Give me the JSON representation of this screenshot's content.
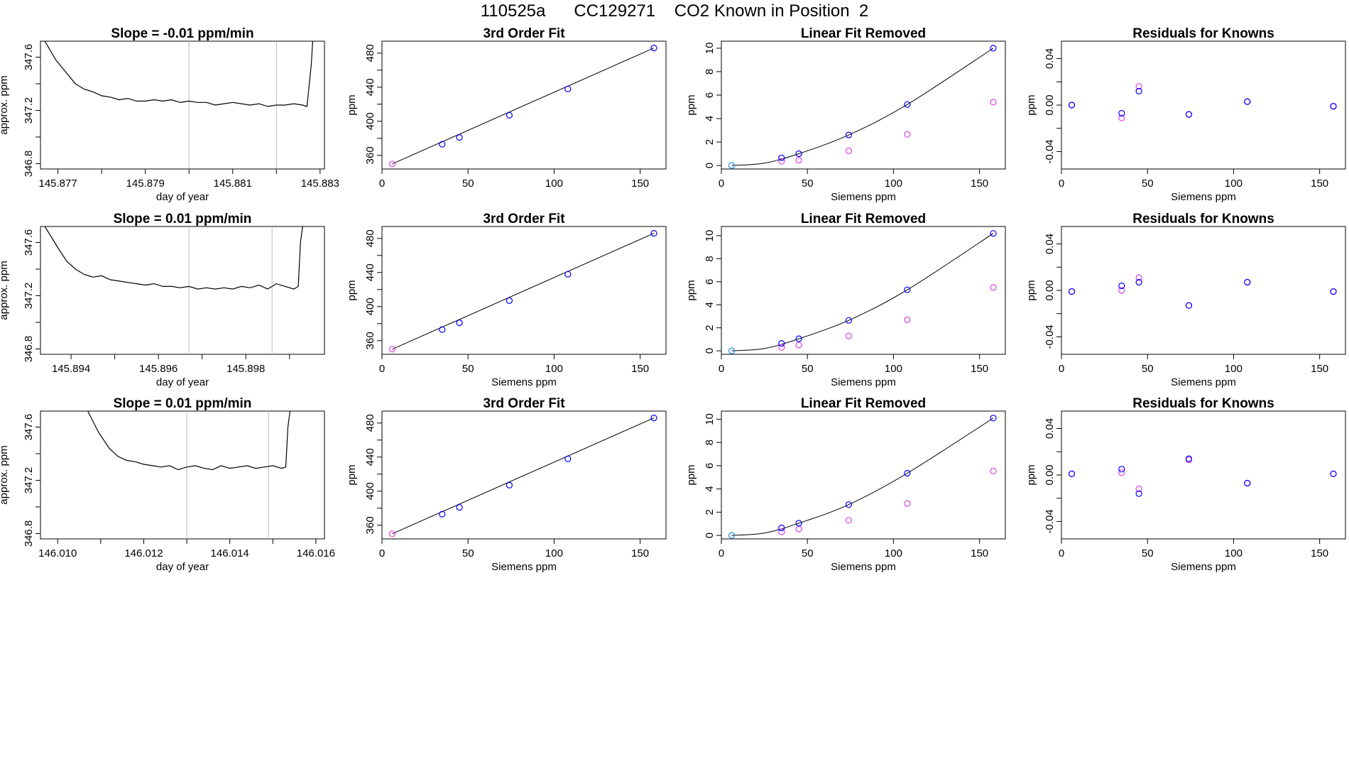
{
  "figure": {
    "title": "110525a      CC129271    CO2 Known in Position  2"
  },
  "colors": {
    "axis": "#000000",
    "curve": "#000000",
    "blue": "#0000ff",
    "magenta": "#e040e0",
    "cyan": "#2090e0",
    "vline": "#bbbbbb",
    "residual_dark": "#7a1fb0"
  },
  "chart_data": [
    {
      "type": "line",
      "row": 0,
      "kind": "timeseries",
      "title": "Slope =  -0.01  ppm/min",
      "xlabel": "day of year",
      "ylabel": "approx. ppm",
      "xlim": [
        145.8766,
        145.8831
      ],
      "ylim": [
        346.76,
        347.72
      ],
      "xticks": [
        "145.877",
        "145.879",
        "145.881",
        "145.883"
      ],
      "xtick_values": [
        145.877,
        145.879,
        145.881,
        145.883
      ],
      "xminor": [
        145.878,
        145.88,
        145.882
      ],
      "yticks": [
        "346.8",
        "347.2",
        "347.6"
      ],
      "ytick_values": [
        346.8,
        347.2,
        347.6
      ],
      "yminor": [
        347.0,
        347.4
      ],
      "vlines": [
        145.88,
        145.882
      ],
      "curve": {
        "x": [
          145.8767,
          145.87695,
          145.8772,
          145.8774,
          145.8776,
          145.8778,
          145.878,
          145.8782,
          145.8784,
          145.8786,
          145.8788,
          145.879,
          145.8792,
          145.8794,
          145.8796,
          145.8798,
          145.88,
          145.8802,
          145.8804,
          145.8806,
          145.8808,
          145.881,
          145.8812,
          145.8814,
          145.8816,
          145.8818,
          145.882,
          145.8822,
          145.8824,
          145.8826,
          145.8827,
          145.8828,
          145.88283
        ],
        "y": [
          347.72,
          347.58,
          347.48,
          347.4,
          347.36,
          347.34,
          347.31,
          347.3,
          347.28,
          347.29,
          347.27,
          347.27,
          347.28,
          347.27,
          347.28,
          347.26,
          347.27,
          347.26,
          347.26,
          347.24,
          347.25,
          347.26,
          347.25,
          347.24,
          347.25,
          347.23,
          347.24,
          347.24,
          347.25,
          347.24,
          347.23,
          347.55,
          347.72
        ]
      }
    },
    {
      "type": "scatter",
      "row": 0,
      "kind": "fit",
      "title": "3rd Order Fit",
      "xlabel": "",
      "ylabel": "ppm",
      "xlim": [
        0,
        165
      ],
      "ylim": [
        344,
        494
      ],
      "xticks": [
        "0",
        "50",
        "100",
        "150"
      ],
      "xtick_values": [
        0,
        50,
        100,
        150
      ],
      "yticks": [
        "360",
        "400",
        "440",
        "480"
      ],
      "ytick_values": [
        360,
        400,
        440,
        480
      ],
      "yminor": [
        380,
        420,
        460
      ],
      "fit_line": {
        "x": [
          6,
          158
        ],
        "y": [
          350,
          486
        ]
      },
      "series": [
        {
          "color": "magenta",
          "x": [
            6
          ],
          "y": [
            350
          ]
        },
        {
          "color": "blue",
          "x": [
            35,
            45,
            74,
            108,
            158
          ],
          "y": [
            373,
            381,
            407,
            438,
            486
          ]
        }
      ]
    },
    {
      "type": "scatter",
      "row": 0,
      "kind": "linfit",
      "title": "Linear Fit Removed",
      "xlabel": "Siemens ppm",
      "ylabel": "ppm",
      "xlim": [
        0,
        165
      ],
      "ylim": [
        -0.3,
        10.6
      ],
      "xticks": [
        "0",
        "50",
        "100",
        "150"
      ],
      "xtick_values": [
        0,
        50,
        100,
        150
      ],
      "yticks": [
        "0",
        "2",
        "4",
        "6",
        "8",
        "10"
      ],
      "ytick_values": [
        0,
        2,
        4,
        6,
        8,
        10
      ],
      "fit_curve": {
        "x": [
          6,
          25,
          45,
          74,
          108,
          158
        ],
        "y": [
          0,
          0.2,
          1.0,
          2.6,
          5.2,
          10.0
        ]
      },
      "series": [
        {
          "color": "cyan",
          "x": [
            6
          ],
          "y": [
            0
          ]
        },
        {
          "color": "magenta",
          "x": [
            35,
            45,
            74,
            108,
            158
          ],
          "y": [
            0.35,
            0.45,
            1.25,
            2.65,
            5.4
          ]
        },
        {
          "color": "blue",
          "x": [
            35,
            45,
            74,
            108,
            158
          ],
          "y": [
            0.65,
            1.0,
            2.6,
            5.2,
            10.0
          ]
        }
      ]
    },
    {
      "type": "scatter",
      "row": 0,
      "kind": "residuals",
      "title": "Residuals for Knowns",
      "xlabel": "Siemens ppm",
      "ylabel": "ppm",
      "xlim": [
        0,
        165
      ],
      "ylim": [
        -0.055,
        0.055
      ],
      "xticks": [
        "0",
        "50",
        "100",
        "150"
      ],
      "xtick_values": [
        0,
        50,
        100,
        150
      ],
      "yticks": [
        "-0.04",
        "0.00",
        "0.04"
      ],
      "ytick_values": [
        -0.04,
        0.0,
        0.04
      ],
      "yminor": [
        -0.02,
        0.02
      ],
      "series": [
        {
          "color": "magenta",
          "x": [
            6,
            35,
            45,
            74,
            108,
            158
          ],
          "y": [
            0.0,
            -0.011,
            0.016,
            -0.008,
            0.003,
            -0.001
          ]
        },
        {
          "color": "blue",
          "x": [
            6,
            35,
            45,
            74,
            108,
            158
          ],
          "y": [
            0.0,
            -0.007,
            0.012,
            -0.008,
            0.003,
            -0.001
          ]
        }
      ]
    },
    {
      "type": "line",
      "row": 1,
      "kind": "timeseries",
      "title": "Slope =  0.01  ppm/min",
      "xlabel": "day of year",
      "ylabel": "approx. ppm",
      "xlim": [
        145.8933,
        145.8998
      ],
      "ylim": [
        346.76,
        347.72
      ],
      "xticks": [
        "145.894",
        "145.896",
        "145.898"
      ],
      "xtick_values": [
        145.894,
        145.896,
        145.898
      ],
      "xminor": [
        145.895,
        145.897,
        145.899
      ],
      "yticks": [
        "346.8",
        "347.2",
        "347.6"
      ],
      "ytick_values": [
        346.8,
        347.2,
        347.6
      ],
      "yminor": [
        347.0,
        347.4
      ],
      "vlines": [
        145.8967,
        145.8986
      ],
      "curve": {
        "x": [
          145.8934,
          145.8937,
          145.8939,
          145.8941,
          145.8943,
          145.8945,
          145.8947,
          145.8949,
          145.8951,
          145.8953,
          145.8955,
          145.8957,
          145.8959,
          145.8961,
          145.8963,
          145.8965,
          145.8967,
          145.8969,
          145.8971,
          145.8973,
          145.8975,
          145.8977,
          145.8979,
          145.8981,
          145.8983,
          145.8985,
          145.8987,
          145.8989,
          145.8991,
          145.8992,
          145.89925,
          145.8993
        ],
        "y": [
          347.72,
          347.56,
          347.46,
          347.4,
          347.36,
          347.34,
          347.35,
          347.32,
          347.31,
          347.3,
          347.29,
          347.28,
          347.29,
          347.27,
          347.27,
          347.26,
          347.27,
          347.25,
          347.26,
          347.25,
          347.26,
          347.25,
          347.27,
          347.26,
          347.28,
          347.25,
          347.29,
          347.27,
          347.25,
          347.27,
          347.6,
          347.72
        ]
      }
    },
    {
      "type": "scatter",
      "row": 1,
      "kind": "fit",
      "title": "3rd Order Fit",
      "xlabel": "Siemens ppm",
      "ylabel": "ppm",
      "xlim": [
        0,
        165
      ],
      "ylim": [
        344,
        494
      ],
      "xticks": [
        "0",
        "50",
        "100",
        "150"
      ],
      "xtick_values": [
        0,
        50,
        100,
        150
      ],
      "yticks": [
        "360",
        "400",
        "440",
        "480"
      ],
      "ytick_values": [
        360,
        400,
        440,
        480
      ],
      "yminor": [
        380,
        420,
        460
      ],
      "fit_line": {
        "x": [
          6,
          158
        ],
        "y": [
          350,
          486
        ]
      },
      "series": [
        {
          "color": "magenta",
          "x": [
            6
          ],
          "y": [
            350
          ]
        },
        {
          "color": "blue",
          "x": [
            35,
            45,
            74,
            108,
            158
          ],
          "y": [
            373,
            381,
            407,
            438,
            486
          ]
        }
      ]
    },
    {
      "type": "scatter",
      "row": 1,
      "kind": "linfit",
      "title": "Linear Fit Removed",
      "xlabel": "Siemens ppm",
      "ylabel": "ppm",
      "xlim": [
        0,
        165
      ],
      "ylim": [
        -0.3,
        10.8
      ],
      "xticks": [
        "0",
        "50",
        "100",
        "150"
      ],
      "xtick_values": [
        0,
        50,
        100,
        150
      ],
      "yticks": [
        "0",
        "2",
        "4",
        "6",
        "8",
        "10"
      ],
      "ytick_values": [
        0,
        2,
        4,
        6,
        8,
        10
      ],
      "fit_curve": {
        "x": [
          6,
          25,
          45,
          74,
          108,
          158
        ],
        "y": [
          0,
          0.2,
          1.05,
          2.65,
          5.3,
          10.2
        ]
      },
      "series": [
        {
          "color": "cyan",
          "x": [
            6
          ],
          "y": [
            0
          ]
        },
        {
          "color": "magenta",
          "x": [
            35,
            45,
            74,
            108,
            158
          ],
          "y": [
            0.3,
            0.5,
            1.3,
            2.7,
            5.5
          ]
        },
        {
          "color": "blue",
          "x": [
            35,
            45,
            74,
            108,
            158
          ],
          "y": [
            0.65,
            1.05,
            2.65,
            5.3,
            10.2
          ]
        }
      ]
    },
    {
      "type": "scatter",
      "row": 1,
      "kind": "residuals",
      "title": "Residuals for Knowns",
      "xlabel": "Siemens ppm",
      "ylabel": "ppm",
      "xlim": [
        0,
        165
      ],
      "ylim": [
        -0.055,
        0.055
      ],
      "xticks": [
        "0",
        "50",
        "100",
        "150"
      ],
      "xtick_values": [
        0,
        50,
        100,
        150
      ],
      "yticks": [
        "-0.04",
        "0.00",
        "0.04"
      ],
      "ytick_values": [
        -0.04,
        0.0,
        0.04
      ],
      "yminor": [
        -0.02,
        0.02
      ],
      "series": [
        {
          "color": "magenta",
          "x": [
            6,
            35,
            45,
            74,
            108,
            158
          ],
          "y": [
            -0.001,
            0.0,
            0.011,
            -0.013,
            0.007,
            -0.001
          ]
        },
        {
          "color": "blue",
          "x": [
            6,
            35,
            45,
            74,
            108,
            158
          ],
          "y": [
            -0.001,
            0.004,
            0.007,
            -0.013,
            0.007,
            -0.001
          ]
        }
      ]
    },
    {
      "type": "line",
      "row": 2,
      "kind": "timeseries",
      "title": "Slope =  0.01  ppm/min",
      "xlabel": "day of year",
      "ylabel": "approx. ppm",
      "xlim": [
        146.0096,
        146.0162
      ],
      "ylim": [
        346.76,
        347.72
      ],
      "xticks": [
        "146.010",
        "146.012",
        "146.014",
        "146.016"
      ],
      "xtick_values": [
        146.01,
        146.012,
        146.014,
        146.016
      ],
      "xminor": [
        146.011,
        146.013,
        146.015
      ],
      "yticks": [
        "346.8",
        "347.2",
        "347.6"
      ],
      "ytick_values": [
        346.8,
        347.2,
        347.6
      ],
      "yminor": [
        347.0,
        347.4
      ],
      "vlines": [
        146.013,
        146.0149
      ],
      "curve": {
        "x": [
          146.0107,
          146.01095,
          146.0112,
          146.0114,
          146.0116,
          146.0118,
          146.012,
          146.0122,
          146.0124,
          146.0126,
          146.0128,
          146.013,
          146.0132,
          146.0134,
          146.0136,
          146.0138,
          146.014,
          146.0142,
          146.0144,
          146.0146,
          146.0148,
          146.015,
          146.0152,
          146.0153,
          146.01535,
          146.0154
        ],
        "y": [
          347.72,
          347.56,
          347.44,
          347.38,
          347.35,
          347.34,
          347.32,
          347.31,
          347.3,
          347.31,
          347.28,
          347.3,
          347.31,
          347.29,
          347.28,
          347.31,
          347.29,
          347.3,
          347.31,
          347.29,
          347.3,
          347.31,
          347.29,
          347.3,
          347.6,
          347.72
        ]
      }
    },
    {
      "type": "scatter",
      "row": 2,
      "kind": "fit",
      "title": "3rd Order Fit",
      "xlabel": "Siemens ppm",
      "ylabel": "ppm",
      "xlim": [
        0,
        165
      ],
      "ylim": [
        344,
        494
      ],
      "xticks": [
        "0",
        "50",
        "100",
        "150"
      ],
      "xtick_values": [
        0,
        50,
        100,
        150
      ],
      "yticks": [
        "360",
        "400",
        "440",
        "480"
      ],
      "ytick_values": [
        360,
        400,
        440,
        480
      ],
      "yminor": [
        380,
        420,
        460
      ],
      "fit_line": {
        "x": [
          6,
          158
        ],
        "y": [
          350,
          486
        ]
      },
      "series": [
        {
          "color": "magenta",
          "x": [
            6
          ],
          "y": [
            350
          ]
        },
        {
          "color": "blue",
          "x": [
            35,
            45,
            74,
            108,
            158
          ],
          "y": [
            373,
            381,
            407,
            438,
            486
          ]
        }
      ]
    },
    {
      "type": "scatter",
      "row": 2,
      "kind": "linfit",
      "title": "Linear Fit Removed",
      "xlabel": "Siemens ppm",
      "ylabel": "ppm",
      "xlim": [
        0,
        165
      ],
      "ylim": [
        -0.3,
        10.7
      ],
      "xticks": [
        "0",
        "50",
        "100",
        "150"
      ],
      "xtick_values": [
        0,
        50,
        100,
        150
      ],
      "yticks": [
        "0",
        "2",
        "4",
        "6",
        "8",
        "10"
      ],
      "ytick_values": [
        0,
        2,
        4,
        6,
        8,
        10
      ],
      "fit_curve": {
        "x": [
          6,
          25,
          45,
          74,
          108,
          158
        ],
        "y": [
          0,
          0.2,
          1.05,
          2.65,
          5.35,
          10.1
        ]
      },
      "series": [
        {
          "color": "cyan",
          "x": [
            6
          ],
          "y": [
            0
          ]
        },
        {
          "color": "magenta",
          "x": [
            35,
            45,
            74,
            108,
            158
          ],
          "y": [
            0.3,
            0.55,
            1.3,
            2.75,
            5.55
          ]
        },
        {
          "color": "blue",
          "x": [
            35,
            45,
            74,
            108,
            158
          ],
          "y": [
            0.65,
            1.05,
            2.65,
            5.35,
            10.1
          ]
        }
      ]
    },
    {
      "type": "scatter",
      "row": 2,
      "kind": "residuals",
      "title": "Residuals for Knowns",
      "xlabel": "Siemens ppm",
      "ylabel": "ppm",
      "xlim": [
        0,
        165
      ],
      "ylim": [
        -0.055,
        0.055
      ],
      "xticks": [
        "0",
        "50",
        "100",
        "150"
      ],
      "xtick_values": [
        0,
        50,
        100,
        150
      ],
      "yticks": [
        "-0.04",
        "0.00",
        "0.04"
      ],
      "ytick_values": [
        -0.04,
        0.0,
        0.04
      ],
      "yminor": [
        -0.02,
        0.02
      ],
      "series": [
        {
          "color": "magenta",
          "x": [
            6,
            35,
            45,
            74,
            108,
            158
          ],
          "y": [
            0.001,
            0.002,
            -0.012,
            0.013,
            -0.007,
            0.001
          ]
        },
        {
          "color": "blue",
          "x": [
            6,
            35,
            45,
            74,
            108,
            158
          ],
          "y": [
            0.001,
            0.005,
            -0.016,
            0.014,
            -0.007,
            0.001
          ]
        }
      ]
    }
  ]
}
